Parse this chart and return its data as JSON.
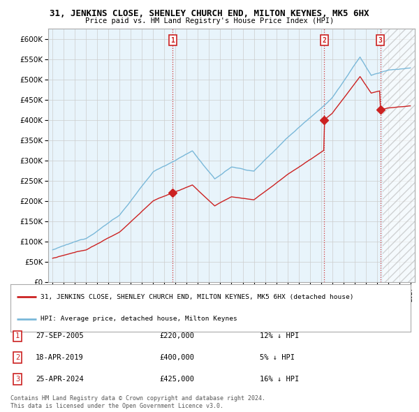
{
  "title": "31, JENKINS CLOSE, SHENLEY CHURCH END, MILTON KEYNES, MK5 6HX",
  "subtitle": "Price paid vs. HM Land Registry's House Price Index (HPI)",
  "ylim": [
    0,
    625000
  ],
  "yticks": [
    0,
    50000,
    100000,
    150000,
    200000,
    250000,
    300000,
    350000,
    400000,
    450000,
    500000,
    550000,
    600000
  ],
  "xlim_start": 1994.6,
  "xlim_end": 2027.4,
  "xtick_years": [
    1995,
    1996,
    1997,
    1998,
    1999,
    2000,
    2001,
    2002,
    2003,
    2004,
    2005,
    2006,
    2007,
    2008,
    2009,
    2010,
    2011,
    2012,
    2013,
    2014,
    2015,
    2016,
    2017,
    2018,
    2019,
    2020,
    2021,
    2022,
    2023,
    2024,
    2025,
    2026,
    2027
  ],
  "hpi_color": "#7ab8d9",
  "property_color": "#cc2222",
  "marker_color": "#cc2222",
  "vline_color": "#cc2222",
  "bg_color": "#ffffff",
  "chart_bg": "#e8f4fb",
  "grid_color": "#cccccc",
  "sales": [
    {
      "num": 1,
      "date": "27-SEP-2005",
      "price": 220000,
      "year": 2005.74,
      "hpi_pct": "12%"
    },
    {
      "num": 2,
      "date": "18-APR-2019",
      "price": 400000,
      "year": 2019.29,
      "hpi_pct": "5%"
    },
    {
      "num": 3,
      "date": "25-APR-2024",
      "price": 425000,
      "year": 2024.32,
      "hpi_pct": "16%"
    }
  ],
  "legend_property": "31, JENKINS CLOSE, SHENLEY CHURCH END, MILTON KEYNES, MK5 6HX (detached house)",
  "legend_hpi": "HPI: Average price, detached house, Milton Keynes",
  "footer1": "Contains HM Land Registry data © Crown copyright and database right 2024.",
  "footer2": "This data is licensed under the Open Government Licence v3.0.",
  "table_rows": [
    {
      "num": "1",
      "date": "27-SEP-2005",
      "price": "£220,000",
      "pct": "12% ↓ HPI"
    },
    {
      "num": "2",
      "date": "18-APR-2019",
      "price": "£400,000",
      "pct": "5% ↓ HPI"
    },
    {
      "num": "3",
      "date": "25-APR-2024",
      "price": "£425,000",
      "pct": "16% ↓ HPI"
    }
  ]
}
